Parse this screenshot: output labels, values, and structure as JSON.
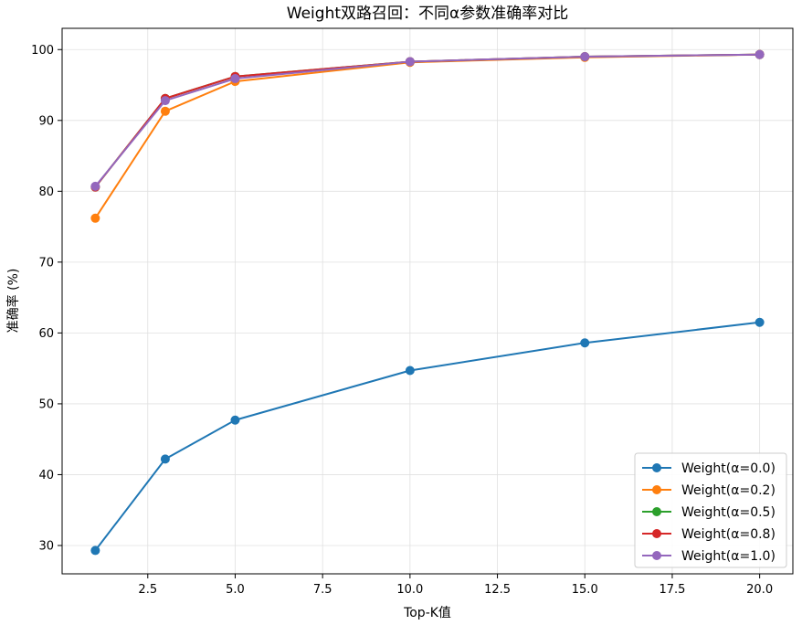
{
  "chart_data": {
    "type": "line",
    "title": "Weight双路召回：不同α参数准确率对比",
    "xlabel": "Top-K值",
    "ylabel": "准确率 (%)",
    "xlim": [
      0.05,
      20.95
    ],
    "ylim": [
      26.0,
      103.0
    ],
    "xticks": [
      2.5,
      5.0,
      7.5,
      10.0,
      12.5,
      15.0,
      17.5,
      20.0
    ],
    "xtick_labels": [
      "2.5",
      "5.0",
      "7.5",
      "10.0",
      "12.5",
      "15.0",
      "17.5",
      "20.0"
    ],
    "yticks": [
      30,
      40,
      50,
      60,
      70,
      80,
      90,
      100
    ],
    "ytick_labels": [
      "30",
      "40",
      "50",
      "60",
      "70",
      "80",
      "90",
      "100"
    ],
    "grid": true,
    "legend_position": "bottom-right",
    "x": [
      1,
      3,
      5,
      10,
      15,
      20
    ],
    "series": [
      {
        "name": "Weight(α=0.0)",
        "color": "#1f77b4",
        "values": [
          29.3,
          42.2,
          47.7,
          54.7,
          58.6,
          61.5
        ]
      },
      {
        "name": "Weight(α=0.2)",
        "color": "#ff7f0e",
        "values": [
          76.2,
          91.3,
          95.5,
          98.2,
          98.9,
          99.3
        ]
      },
      {
        "name": "Weight(α=0.5)",
        "color": "#2ca02c",
        "values": [
          80.6,
          93.1,
          96.2,
          98.3,
          99.0,
          99.3
        ]
      },
      {
        "name": "Weight(α=0.8)",
        "color": "#d62728",
        "values": [
          80.6,
          93.1,
          96.2,
          98.3,
          99.0,
          99.3
        ]
      },
      {
        "name": "Weight(α=1.0)",
        "color": "#9467bd",
        "values": [
          80.7,
          92.8,
          95.9,
          98.3,
          99.0,
          99.3
        ]
      }
    ]
  }
}
